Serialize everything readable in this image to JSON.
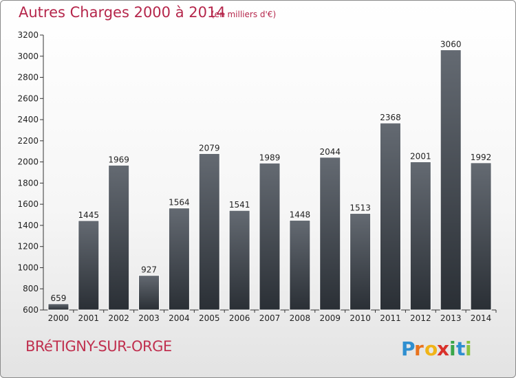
{
  "header": {
    "title": "Autres Charges 2000 à 2014",
    "unit": "(en milliers d'€)"
  },
  "footer": {
    "city": "BRéTIGNY-SUR-ORGE",
    "logo_text": "Proxiti"
  },
  "colors": {
    "title": "#b5264b",
    "bar_top": "#646a72",
    "bar_bottom": "#2a2f35"
  },
  "chart_data": {
    "type": "bar",
    "title": "Autres Charges 2000 à 2014",
    "xlabel": "",
    "ylabel": "",
    "categories": [
      "2000",
      "2001",
      "2002",
      "2003",
      "2004",
      "2005",
      "2006",
      "2007",
      "2008",
      "2009",
      "2010",
      "2011",
      "2012",
      "2013",
      "2014"
    ],
    "values": [
      659,
      1445,
      1969,
      927,
      1564,
      2079,
      1541,
      1989,
      1448,
      2044,
      1513,
      2368,
      2001,
      3060,
      1992
    ],
    "ylim": [
      600,
      3200
    ],
    "yticks": [
      600,
      800,
      1000,
      1200,
      1400,
      1600,
      1800,
      2000,
      2200,
      2400,
      2600,
      2800,
      3000,
      3200
    ],
    "grid": false,
    "legend": "none"
  }
}
